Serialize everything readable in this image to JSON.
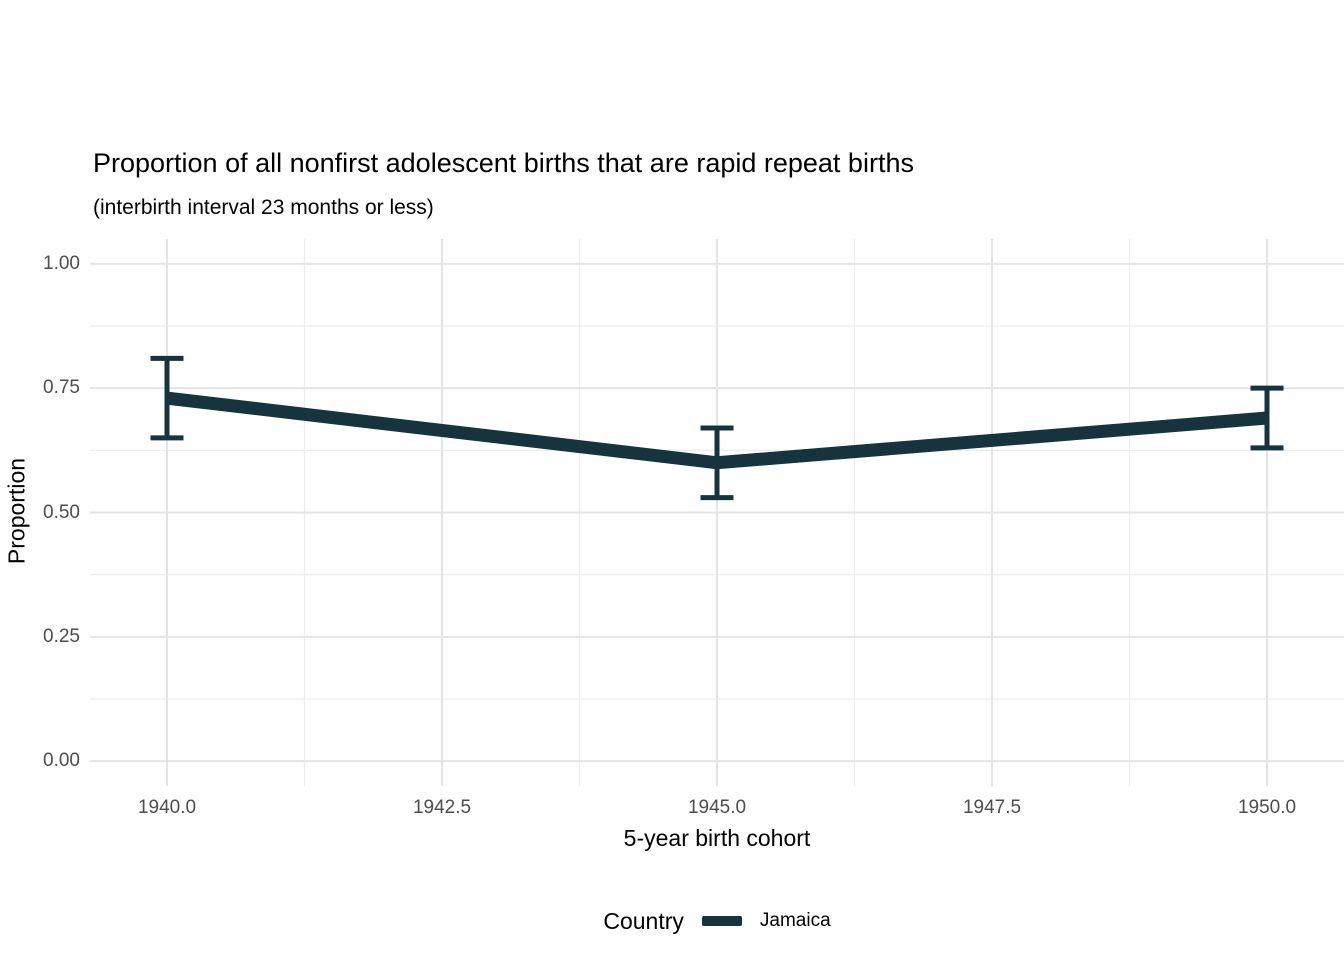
{
  "title": "Proportion of all nonfirst adolescent births that are rapid repeat births",
  "subtitle": "(interbirth interval 23 months or less)",
  "chart_data": {
    "type": "line",
    "title": "Proportion of all nonfirst adolescent births that are rapid repeat births",
    "subtitle": "(interbirth interval 23 months or less)",
    "xlabel": "5-year birth cohort",
    "ylabel": "Proportion",
    "x": [
      1940,
      1945,
      1950
    ],
    "series": [
      {
        "name": "Jamaica",
        "values": [
          0.73,
          0.6,
          0.69
        ],
        "ymin": [
          0.65,
          0.53,
          0.63
        ],
        "ymax": [
          0.81,
          0.67,
          0.75
        ],
        "color": "#16333E"
      }
    ],
    "x_ticks": {
      "values": [
        1940.0,
        1942.5,
        1945.0,
        1947.5,
        1950.0
      ],
      "labels": [
        "1940.0",
        "1942.5",
        "1945.0",
        "1947.5",
        "1950.0"
      ]
    },
    "y_ticks": {
      "values": [
        0.0,
        0.25,
        0.5,
        0.75,
        1.0
      ],
      "labels": [
        "0.00",
        "0.25",
        "0.50",
        "0.75",
        "1.00"
      ]
    },
    "x_minor": [
      1941.25,
      1943.75,
      1946.25,
      1948.75
    ],
    "y_minor": [
      0.125,
      0.375,
      0.625,
      0.875
    ],
    "xlim": [
      1939.3,
      1950.7
    ],
    "ylim": [
      -0.05,
      1.05
    ],
    "grid": true,
    "legend": {
      "title": "Country",
      "position": "bottom",
      "items": [
        {
          "label": "Jamaica",
          "color": "#16333E"
        }
      ]
    }
  },
  "style": {
    "line_width": 13,
    "errorbar_width": 5,
    "errorbar_cap_halfwidth": 16.5,
    "colors": {
      "series": "#16333E",
      "grid_major": "#E4E4E4",
      "grid_minor": "#ECECEC",
      "tick_label": "#4D4D4D",
      "text": "#000000",
      "background": "#FFFFFF"
    }
  }
}
